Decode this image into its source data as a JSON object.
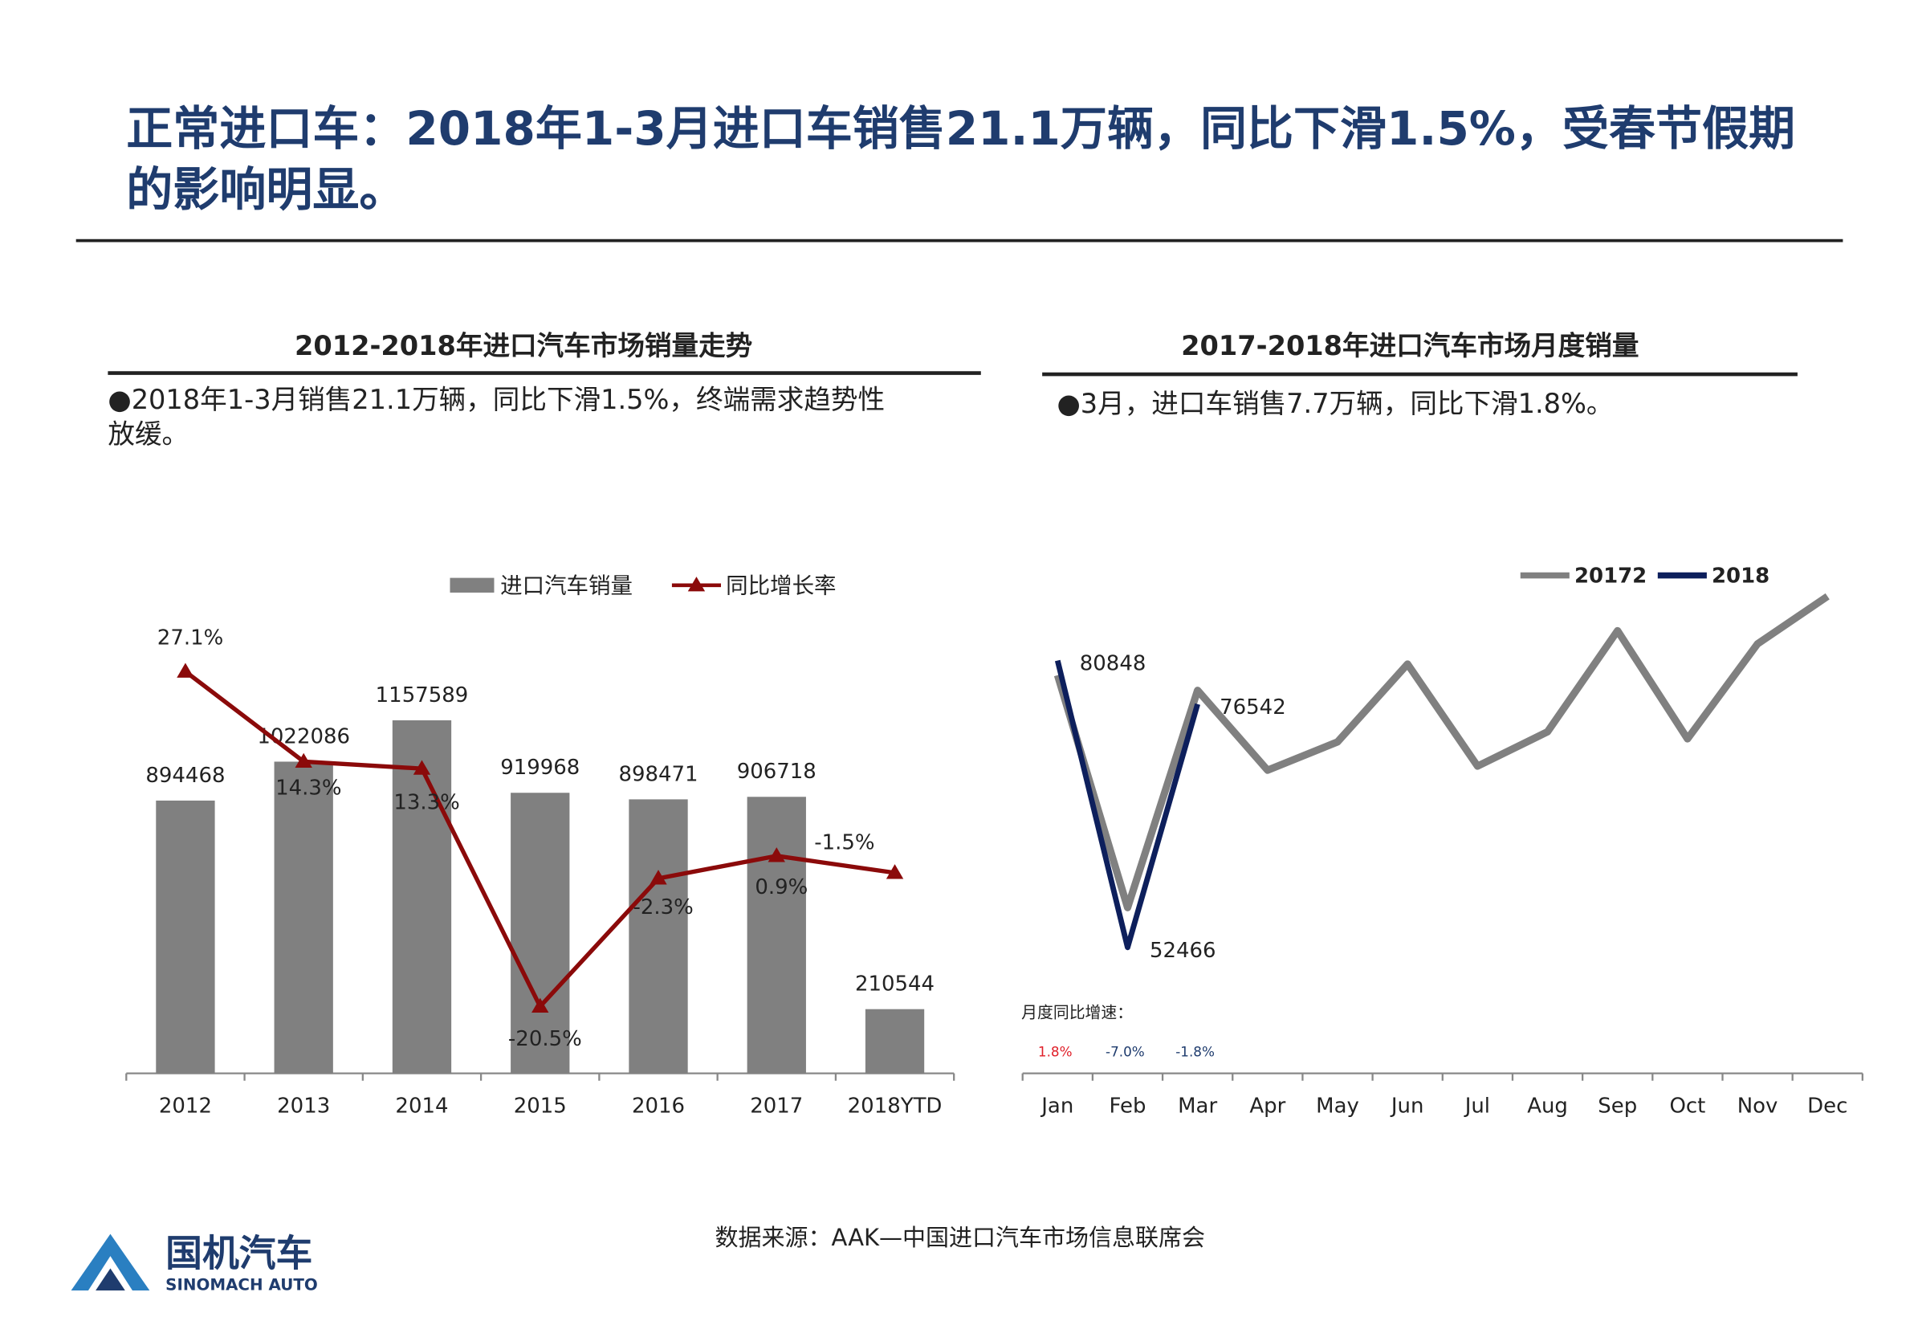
{
  "title": [
    "正常进口车：2018年1-3月进口车销售21.1万辆，同比下滑1.5%，受春节假期",
    "的影响明显。"
  ],
  "chart_data": [
    {
      "type": "bar",
      "title": "2012-2018年进口汽车市场销量走势",
      "note": [
        "●2018年1-3月销售21.1万辆，同比下滑1.5%，终端需求趋势性",
        "放缓。"
      ],
      "categories": [
        "2012",
        "2013",
        "2014",
        "2015",
        "2016",
        "2017",
        "2018YTD"
      ],
      "series": [
        {
          "name": "进口汽车销量",
          "color": "#808080",
          "values": [
            894468,
            1022086,
            1157589,
            919968,
            898471,
            906718,
            210544
          ]
        },
        {
          "name": "同比增长率",
          "color": "#8b0a0a",
          "axis": "y2",
          "values": [
            27.1,
            14.3,
            13.3,
            -20.5,
            -2.3,
            0.9,
            -1.5
          ],
          "value_labels": [
            "27.1%",
            "14.3%",
            "13.3%",
            "-20.5%",
            "-2.3%",
            "0.9%",
            "-1.5%"
          ]
        }
      ],
      "ylim": [
        0,
        1500000
      ],
      "y2lim": [
        -30,
        35
      ],
      "legend": "top"
    },
    {
      "type": "line",
      "title": "2017-2018年进口汽车市场月度销量",
      "note": [
        "●3月，进口车销售7.7万辆，同比下滑1.8%。"
      ],
      "categories": [
        "Jan",
        "Feb",
        "Mar",
        "Apr",
        "May",
        "Jun",
        "Jul",
        "Aug",
        "Sep",
        "Oct",
        "Nov",
        "Dec"
      ],
      "series": [
        {
          "name": "20172",
          "color": "#808080",
          "values": [
            79400,
            56400,
            77900,
            70000,
            72800,
            80500,
            70400,
            73800,
            83800,
            73100,
            82500,
            87200
          ]
        },
        {
          "name": "2018",
          "color": "#0d1f5c",
          "values": [
            80848,
            52466,
            76542,
            null,
            null,
            null,
            null,
            null,
            null,
            null,
            null,
            null
          ],
          "data_labels": true
        }
      ],
      "ylim": [
        40000,
        90000
      ],
      "legend": "top-right",
      "yoy": {
        "label": "月度同比增速：",
        "values": [
          1.8,
          -7.0,
          -1.8
        ],
        "value_labels": [
          "1.8%",
          "-7.0%",
          "-1.8%"
        ],
        "colors": [
          "#e0202a",
          "#1f3c6e",
          "#1f3c6e"
        ]
      }
    }
  ],
  "source": "数据来源：AAK—中国进口汽车市场信息联席会",
  "logo": {
    "name": "国机汽车",
    "name_en": "SINOMACH AUTO"
  }
}
